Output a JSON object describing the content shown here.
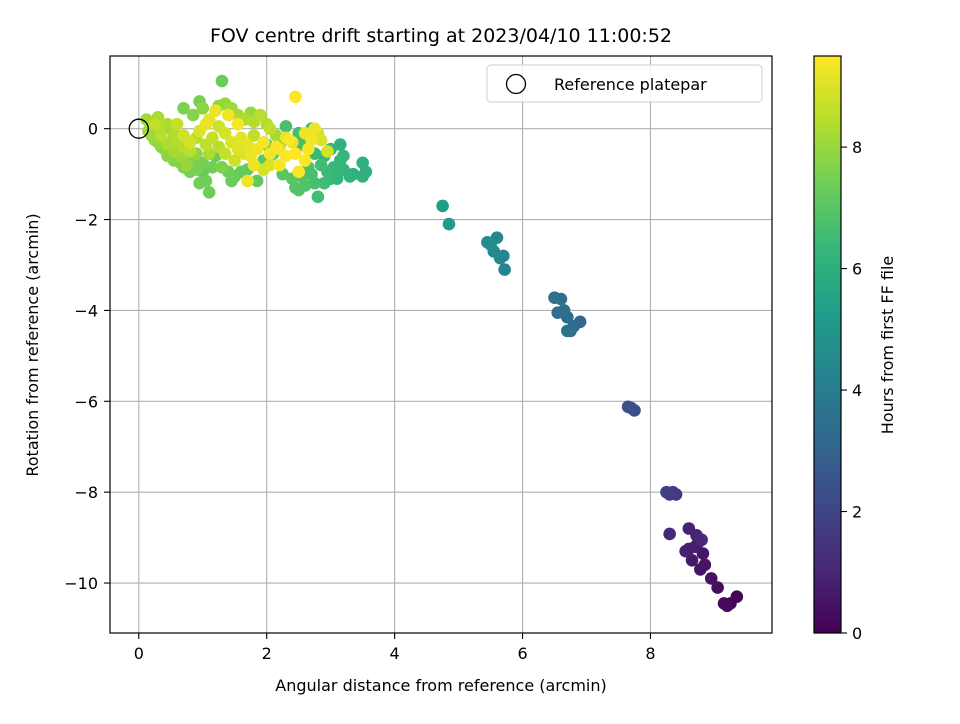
{
  "chart_data": {
    "type": "scatter",
    "title": "FOV centre drift starting at 2023/04/10 11:00:52",
    "xlabel": "Angular distance from reference (arcmin)",
    "ylabel": "Rotation from reference (arcmin)",
    "xlim": [
      -0.45,
      9.9
    ],
    "ylim": [
      -11.1,
      1.6
    ],
    "xticks": [
      0,
      2,
      4,
      6,
      8
    ],
    "yticks": [
      0,
      -2,
      -4,
      -6,
      -8,
      -10
    ],
    "xtick_labels": [
      "0",
      "2",
      "4",
      "6",
      "8"
    ],
    "ytick_labels": [
      "0",
      "−2",
      "−4",
      "−6",
      "−8",
      "−10"
    ],
    "grid": true,
    "legend": {
      "position": "top-right",
      "entries": [
        "Reference platepar"
      ]
    },
    "reference_point": {
      "x": 0,
      "y": 0,
      "label": "Reference platepar"
    },
    "colorbar": {
      "label": "Hours from first FF file",
      "range": [
        0,
        9.5
      ],
      "ticks": [
        0,
        2,
        4,
        6,
        8
      ],
      "tick_labels": [
        "0",
        "2",
        "4",
        "6",
        "8"
      ],
      "colormap": "viridis",
      "stops": [
        "#440154",
        "#482878",
        "#3e4989",
        "#31688e",
        "#26828e",
        "#1f9e89",
        "#35b779",
        "#6ece58",
        "#b5de2b",
        "#fde725"
      ]
    },
    "points": [
      {
        "x": 9.35,
        "y": -10.3,
        "t": 0.1
      },
      {
        "x": 9.25,
        "y": -10.45,
        "t": 0.15
      },
      {
        "x": 9.2,
        "y": -10.5,
        "t": 0.2
      },
      {
        "x": 9.15,
        "y": -10.45,
        "t": 0.25
      },
      {
        "x": 9.05,
        "y": -10.1,
        "t": 0.35
      },
      {
        "x": 8.95,
        "y": -9.9,
        "t": 0.45
      },
      {
        "x": 8.85,
        "y": -9.6,
        "t": 0.5
      },
      {
        "x": 8.78,
        "y": -9.7,
        "t": 0.55
      },
      {
        "x": 8.82,
        "y": -9.35,
        "t": 0.6
      },
      {
        "x": 8.75,
        "y": -9.1,
        "t": 0.7
      },
      {
        "x": 8.7,
        "y": -9.2,
        "t": 0.75
      },
      {
        "x": 8.6,
        "y": -9.25,
        "t": 0.8
      },
      {
        "x": 8.55,
        "y": -9.3,
        "t": 0.85
      },
      {
        "x": 8.6,
        "y": -8.8,
        "t": 0.9
      },
      {
        "x": 8.72,
        "y": -8.95,
        "t": 0.95
      },
      {
        "x": 8.3,
        "y": -8.92,
        "t": 1.05
      },
      {
        "x": 8.8,
        "y": -9.05,
        "t": 1.1
      },
      {
        "x": 8.65,
        "y": -9.5,
        "t": 0.65
      },
      {
        "x": 8.4,
        "y": -8.05,
        "t": 1.6
      },
      {
        "x": 8.35,
        "y": -8.0,
        "t": 1.65
      },
      {
        "x": 8.3,
        "y": -8.05,
        "t": 1.7
      },
      {
        "x": 8.25,
        "y": -8.0,
        "t": 1.75
      },
      {
        "x": 7.75,
        "y": -6.2,
        "t": 2.3
      },
      {
        "x": 7.7,
        "y": -6.15,
        "t": 2.35
      },
      {
        "x": 7.65,
        "y": -6.12,
        "t": 2.4
      },
      {
        "x": 6.9,
        "y": -4.25,
        "t": 3.2
      },
      {
        "x": 6.8,
        "y": -4.35,
        "t": 3.25
      },
      {
        "x": 6.75,
        "y": -4.45,
        "t": 3.3
      },
      {
        "x": 6.7,
        "y": -4.15,
        "t": 3.35
      },
      {
        "x": 6.65,
        "y": -4.0,
        "t": 3.4
      },
      {
        "x": 6.6,
        "y": -3.75,
        "t": 3.45
      },
      {
        "x": 6.55,
        "y": -4.05,
        "t": 3.5
      },
      {
        "x": 6.5,
        "y": -3.72,
        "t": 3.55
      },
      {
        "x": 6.7,
        "y": -4.45,
        "t": 3.6
      },
      {
        "x": 5.72,
        "y": -3.1,
        "t": 4.3
      },
      {
        "x": 5.7,
        "y": -2.8,
        "t": 4.35
      },
      {
        "x": 5.65,
        "y": -2.85,
        "t": 4.4
      },
      {
        "x": 5.6,
        "y": -2.4,
        "t": 4.45
      },
      {
        "x": 5.55,
        "y": -2.7,
        "t": 4.5
      },
      {
        "x": 5.5,
        "y": -2.55,
        "t": 4.55
      },
      {
        "x": 5.45,
        "y": -2.5,
        "t": 4.6
      },
      {
        "x": 4.85,
        "y": -2.1,
        "t": 5.2
      },
      {
        "x": 4.75,
        "y": -1.7,
        "t": 5.25
      },
      {
        "x": 3.55,
        "y": -0.95,
        "t": 6.0
      },
      {
        "x": 3.5,
        "y": -1.05,
        "t": 6.05
      },
      {
        "x": 3.5,
        "y": -0.75,
        "t": 6.1
      },
      {
        "x": 3.3,
        "y": -1.05,
        "t": 6.15
      },
      {
        "x": 3.2,
        "y": -0.9,
        "t": 6.2
      },
      {
        "x": 3.15,
        "y": -0.7,
        "t": 6.25
      },
      {
        "x": 3.1,
        "y": -1.1,
        "t": 6.3
      },
      {
        "x": 3.05,
        "y": -0.85,
        "t": 6.35
      },
      {
        "x": 3.0,
        "y": -1.1,
        "t": 6.4
      },
      {
        "x": 2.95,
        "y": -0.95,
        "t": 6.45
      },
      {
        "x": 2.9,
        "y": -1.2,
        "t": 6.5
      },
      {
        "x": 2.85,
        "y": -0.8,
        "t": 6.55
      },
      {
        "x": 2.8,
        "y": -1.5,
        "t": 6.6
      },
      {
        "x": 2.75,
        "y": -1.2,
        "t": 6.65
      },
      {
        "x": 2.7,
        "y": -1.0,
        "t": 6.7
      },
      {
        "x": 2.65,
        "y": -0.85,
        "t": 6.75
      },
      {
        "x": 2.6,
        "y": -1.25,
        "t": 6.8
      },
      {
        "x": 2.55,
        "y": -1.05,
        "t": 6.85
      },
      {
        "x": 2.5,
        "y": -1.35,
        "t": 6.9
      },
      {
        "x": 2.45,
        "y": -1.3,
        "t": 6.95
      },
      {
        "x": 2.4,
        "y": -1.1,
        "t": 7.0
      },
      {
        "x": 3.15,
        "y": -0.35,
        "t": 6.1
      },
      {
        "x": 3.0,
        "y": -0.45,
        "t": 6.2
      },
      {
        "x": 2.9,
        "y": -0.6,
        "t": 6.3
      },
      {
        "x": 2.75,
        "y": -0.55,
        "t": 6.4
      },
      {
        "x": 2.7,
        "y": 0.0,
        "t": 6.5
      },
      {
        "x": 2.5,
        "y": -0.1,
        "t": 6.6
      },
      {
        "x": 2.3,
        "y": 0.05,
        "t": 6.7
      },
      {
        "x": 2.2,
        "y": -0.4,
        "t": 6.8
      },
      {
        "x": 2.1,
        "y": -0.55,
        "t": 6.9
      },
      {
        "x": 1.95,
        "y": -0.7,
        "t": 7.0
      },
      {
        "x": 1.85,
        "y": -1.15,
        "t": 7.1
      },
      {
        "x": 1.7,
        "y": -0.9,
        "t": 7.15
      },
      {
        "x": 1.6,
        "y": -0.95,
        "t": 7.2
      },
      {
        "x": 1.5,
        "y": -1.05,
        "t": 7.25
      },
      {
        "x": 1.45,
        "y": -1.15,
        "t": 7.3
      },
      {
        "x": 1.3,
        "y": 1.05,
        "t": 7.3
      },
      {
        "x": 1.1,
        "y": -1.4,
        "t": 7.35
      },
      {
        "x": 1.05,
        "y": -1.15,
        "t": 7.4
      },
      {
        "x": 0.95,
        "y": -1.2,
        "t": 7.45
      },
      {
        "x": 0.9,
        "y": -0.9,
        "t": 7.5
      },
      {
        "x": 0.8,
        "y": -0.95,
        "t": 7.55
      },
      {
        "x": 0.7,
        "y": -0.85,
        "t": 7.6
      },
      {
        "x": 0.65,
        "y": -0.75,
        "t": 7.65
      },
      {
        "x": 0.55,
        "y": -0.7,
        "t": 7.7
      },
      {
        "x": 0.5,
        "y": -0.55,
        "t": 7.75
      },
      {
        "x": 0.45,
        "y": -0.6,
        "t": 7.8
      },
      {
        "x": 0.4,
        "y": -0.45,
        "t": 7.85
      },
      {
        "x": 0.35,
        "y": -0.4,
        "t": 7.9
      },
      {
        "x": 0.3,
        "y": -0.3,
        "t": 7.95
      },
      {
        "x": 0.25,
        "y": -0.25,
        "t": 8.0
      },
      {
        "x": 0.2,
        "y": -0.15,
        "t": 8.05
      },
      {
        "x": 0.15,
        "y": -0.05,
        "t": 8.1
      },
      {
        "x": 0.12,
        "y": 0.2,
        "t": 8.15
      },
      {
        "x": 0.2,
        "y": 0.1,
        "t": 8.2
      },
      {
        "x": 0.3,
        "y": 0.25,
        "t": 8.25
      },
      {
        "x": 0.45,
        "y": 0.1,
        "t": 8.3
      },
      {
        "x": 0.55,
        "y": -0.1,
        "t": 8.35
      },
      {
        "x": 0.6,
        "y": -0.25,
        "t": 8.4
      },
      {
        "x": 0.7,
        "y": -0.4,
        "t": 8.45
      },
      {
        "x": 0.8,
        "y": -0.5,
        "t": 8.5
      },
      {
        "x": 0.9,
        "y": -0.2,
        "t": 8.55
      },
      {
        "x": 0.95,
        "y": 0.6,
        "t": 7.5
      },
      {
        "x": 0.7,
        "y": 0.45,
        "t": 7.6
      },
      {
        "x": 0.85,
        "y": 0.3,
        "t": 7.7
      },
      {
        "x": 1.0,
        "y": 0.45,
        "t": 7.8
      },
      {
        "x": 1.25,
        "y": 0.5,
        "t": 7.9
      },
      {
        "x": 1.35,
        "y": 0.55,
        "t": 8.0
      },
      {
        "x": 1.45,
        "y": 0.45,
        "t": 8.1
      },
      {
        "x": 1.55,
        "y": 0.3,
        "t": 8.2
      },
      {
        "x": 1.65,
        "y": 0.2,
        "t": 8.3
      },
      {
        "x": 1.8,
        "y": 0.15,
        "t": 8.4
      },
      {
        "x": 1.9,
        "y": 0.3,
        "t": 8.5
      },
      {
        "x": 2.05,
        "y": 0.0,
        "t": 8.6
      },
      {
        "x": 0.4,
        "y": 0.0,
        "t": 8.0
      },
      {
        "x": 0.5,
        "y": -0.3,
        "t": 7.9
      },
      {
        "x": 0.6,
        "y": -0.45,
        "t": 7.8
      },
      {
        "x": 0.75,
        "y": -0.65,
        "t": 7.7
      },
      {
        "x": 0.85,
        "y": -0.7,
        "t": 7.6
      },
      {
        "x": 1.0,
        "y": -0.75,
        "t": 7.5
      },
      {
        "x": 1.15,
        "y": -0.85,
        "t": 7.4
      },
      {
        "x": 1.2,
        "y": -0.6,
        "t": 7.3
      },
      {
        "x": 1.05,
        "y": -0.35,
        "t": 8.6
      },
      {
        "x": 1.15,
        "y": -0.2,
        "t": 8.7
      },
      {
        "x": 1.25,
        "y": 0.05,
        "t": 8.8
      },
      {
        "x": 1.35,
        "y": -0.1,
        "t": 8.9
      },
      {
        "x": 1.45,
        "y": -0.3,
        "t": 9.0
      },
      {
        "x": 1.55,
        "y": -0.45,
        "t": 9.05
      },
      {
        "x": 1.6,
        "y": -0.2,
        "t": 9.1
      },
      {
        "x": 1.7,
        "y": -0.35,
        "t": 9.15
      },
      {
        "x": 1.75,
        "y": -0.6,
        "t": 9.2
      },
      {
        "x": 1.8,
        "y": -0.8,
        "t": 9.25
      },
      {
        "x": 1.7,
        "y": -1.15,
        "t": 9.3
      },
      {
        "x": 1.85,
        "y": -0.45,
        "t": 9.3
      },
      {
        "x": 1.95,
        "y": -0.3,
        "t": 9.35
      },
      {
        "x": 2.05,
        "y": -0.55,
        "t": 9.35
      },
      {
        "x": 2.15,
        "y": -0.4,
        "t": 9.4
      },
      {
        "x": 2.2,
        "y": -0.8,
        "t": 9.4
      },
      {
        "x": 2.3,
        "y": -0.6,
        "t": 9.45
      },
      {
        "x": 2.35,
        "y": -0.25,
        "t": 9.45
      },
      {
        "x": 2.45,
        "y": -0.55,
        "t": 9.5
      },
      {
        "x": 2.5,
        "y": -0.95,
        "t": 9.5
      },
      {
        "x": 2.6,
        "y": -0.7,
        "t": 9.45
      },
      {
        "x": 2.65,
        "y": -0.45,
        "t": 9.4
      },
      {
        "x": 2.7,
        "y": -0.25,
        "t": 9.35
      },
      {
        "x": 2.75,
        "y": 0.0,
        "t": 9.3
      },
      {
        "x": 2.6,
        "y": -0.1,
        "t": 9.25
      },
      {
        "x": 2.45,
        "y": 0.7,
        "t": 9.5
      },
      {
        "x": 2.3,
        "y": -0.2,
        "t": 9.2
      },
      {
        "x": 2.2,
        "y": -0.45,
        "t": 9.1
      },
      {
        "x": 2.05,
        "y": -0.8,
        "t": 9.0
      },
      {
        "x": 1.95,
        "y": -0.9,
        "t": 8.9
      },
      {
        "x": 2.4,
        "y": -0.3,
        "t": 9.2
      },
      {
        "x": 2.85,
        "y": -0.25,
        "t": 9.0
      },
      {
        "x": 2.95,
        "y": -0.5,
        "t": 8.9
      },
      {
        "x": 2.8,
        "y": -0.1,
        "t": 8.8
      },
      {
        "x": 1.55,
        "y": 0.1,
        "t": 9.4
      },
      {
        "x": 1.4,
        "y": 0.3,
        "t": 9.3
      },
      {
        "x": 1.2,
        "y": 0.4,
        "t": 9.2
      },
      {
        "x": 1.1,
        "y": 0.2,
        "t": 9.1
      },
      {
        "x": 0.3,
        "y": 0.05,
        "t": 8.4
      },
      {
        "x": 0.35,
        "y": -0.15,
        "t": 8.5
      },
      {
        "x": 0.25,
        "y": 0.1,
        "t": 8.6
      },
      {
        "x": 0.45,
        "y": -0.35,
        "t": 8.3
      },
      {
        "x": 0.55,
        "y": -0.5,
        "t": 8.2
      },
      {
        "x": 0.65,
        "y": -0.6,
        "t": 8.1
      },
      {
        "x": 0.75,
        "y": -0.8,
        "t": 8.0
      },
      {
        "x": 0.9,
        "y": -0.55,
        "t": 7.9
      },
      {
        "x": 1.0,
        "y": -0.95,
        "t": 7.2
      },
      {
        "x": 1.1,
        "y": -0.55,
        "t": 8.3
      },
      {
        "x": 1.25,
        "y": -0.4,
        "t": 8.5
      },
      {
        "x": 1.35,
        "y": -0.55,
        "t": 8.7
      },
      {
        "x": 1.5,
        "y": -0.7,
        "t": 8.8
      },
      {
        "x": 1.65,
        "y": -0.55,
        "t": 9.0
      },
      {
        "x": 1.8,
        "y": -0.15,
        "t": 8.6
      },
      {
        "x": 2.0,
        "y": 0.1,
        "t": 8.4
      },
      {
        "x": 2.15,
        "y": -0.15,
        "t": 8.2
      },
      {
        "x": 1.75,
        "y": 0.35,
        "t": 8.0
      },
      {
        "x": 1.3,
        "y": -0.85,
        "t": 7.6
      },
      {
        "x": 1.4,
        "y": -0.95,
        "t": 7.4
      },
      {
        "x": 0.6,
        "y": 0.1,
        "t": 8.7
      },
      {
        "x": 0.7,
        "y": -0.15,
        "t": 8.8
      },
      {
        "x": 0.8,
        "y": -0.3,
        "t": 8.9
      },
      {
        "x": 0.95,
        "y": -0.05,
        "t": 9.0
      },
      {
        "x": 1.05,
        "y": 0.1,
        "t": 9.2
      },
      {
        "x": 2.25,
        "y": -1.0,
        "t": 7.0
      },
      {
        "x": 2.55,
        "y": -0.35,
        "t": 6.6
      },
      {
        "x": 3.2,
        "y": -0.6,
        "t": 6.3
      },
      {
        "x": 3.35,
        "y": -1.0,
        "t": 6.0
      },
      {
        "x": 2.0,
        "y": -0.35,
        "t": 7.2
      }
    ]
  }
}
